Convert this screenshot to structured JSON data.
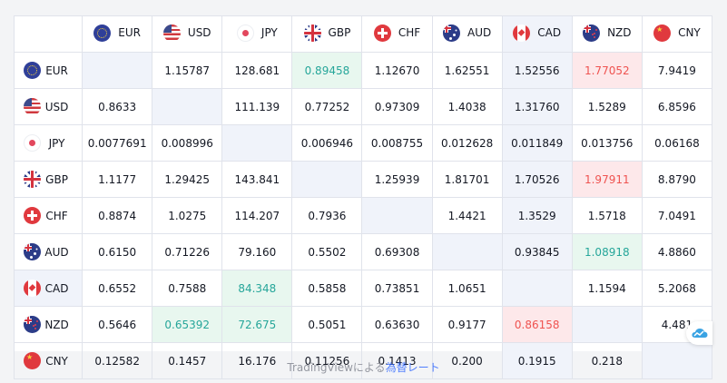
{
  "currencies": [
    "EUR",
    "USD",
    "JPY",
    "GBP",
    "CHF",
    "AUD",
    "CAD",
    "NZD",
    "CNY"
  ],
  "flag_icons": [
    "eu-flag-icon",
    "us-flag-icon",
    "jp-flag-icon",
    "gb-flag-icon",
    "ch-flag-icon",
    "au-flag-icon",
    "ca-flag-icon",
    "nz-flag-icon",
    "cn-flag-icon"
  ],
  "highlighted_column": "CAD",
  "rows": [
    {
      "currency": "EUR",
      "cells": [
        {
          "v": "",
          "s": "diag"
        },
        {
          "v": "1.15787",
          "s": ""
        },
        {
          "v": "128.681",
          "s": ""
        },
        {
          "v": "0.89458",
          "s": "up"
        },
        {
          "v": "1.12670",
          "s": ""
        },
        {
          "v": "1.62551",
          "s": ""
        },
        {
          "v": "1.52556",
          "s": ""
        },
        {
          "v": "1.77052",
          "s": "down"
        },
        {
          "v": "7.9419",
          "s": ""
        }
      ]
    },
    {
      "currency": "USD",
      "cells": [
        {
          "v": "0.8633",
          "s": ""
        },
        {
          "v": "",
          "s": "diag"
        },
        {
          "v": "111.139",
          "s": ""
        },
        {
          "v": "0.77252",
          "s": ""
        },
        {
          "v": "0.97309",
          "s": ""
        },
        {
          "v": "1.4038",
          "s": ""
        },
        {
          "v": "1.31760",
          "s": ""
        },
        {
          "v": "1.5289",
          "s": ""
        },
        {
          "v": "6.8596",
          "s": ""
        }
      ]
    },
    {
      "currency": "JPY",
      "cells": [
        {
          "v": "0.0077691",
          "s": ""
        },
        {
          "v": "0.008996",
          "s": ""
        },
        {
          "v": "",
          "s": "diag"
        },
        {
          "v": "0.006946",
          "s": ""
        },
        {
          "v": "0.008755",
          "s": ""
        },
        {
          "v": "0.012628",
          "s": ""
        },
        {
          "v": "0.011849",
          "s": ""
        },
        {
          "v": "0.013756",
          "s": ""
        },
        {
          "v": "0.06168",
          "s": ""
        }
      ]
    },
    {
      "currency": "GBP",
      "cells": [
        {
          "v": "1.1177",
          "s": ""
        },
        {
          "v": "1.29425",
          "s": ""
        },
        {
          "v": "143.841",
          "s": ""
        },
        {
          "v": "",
          "s": "diag"
        },
        {
          "v": "1.25939",
          "s": ""
        },
        {
          "v": "1.81701",
          "s": ""
        },
        {
          "v": "1.70526",
          "s": ""
        },
        {
          "v": "1.97911",
          "s": "down"
        },
        {
          "v": "8.8790",
          "s": ""
        }
      ]
    },
    {
      "currency": "CHF",
      "cells": [
        {
          "v": "0.8874",
          "s": ""
        },
        {
          "v": "1.0275",
          "s": ""
        },
        {
          "v": "114.207",
          "s": ""
        },
        {
          "v": "0.7936",
          "s": ""
        },
        {
          "v": "",
          "s": "diag"
        },
        {
          "v": "1.4421",
          "s": ""
        },
        {
          "v": "1.3529",
          "s": ""
        },
        {
          "v": "1.5718",
          "s": ""
        },
        {
          "v": "7.0491",
          "s": ""
        }
      ]
    },
    {
      "currency": "AUD",
      "cells": [
        {
          "v": "0.6150",
          "s": ""
        },
        {
          "v": "0.71226",
          "s": ""
        },
        {
          "v": "79.160",
          "s": ""
        },
        {
          "v": "0.5502",
          "s": ""
        },
        {
          "v": "0.69308",
          "s": ""
        },
        {
          "v": "",
          "s": "diag"
        },
        {
          "v": "0.93845",
          "s": ""
        },
        {
          "v": "1.08918",
          "s": "up"
        },
        {
          "v": "4.8860",
          "s": ""
        }
      ]
    },
    {
      "currency": "CAD",
      "cells": [
        {
          "v": "0.6552",
          "s": ""
        },
        {
          "v": "0.7588",
          "s": ""
        },
        {
          "v": "84.348",
          "s": "up"
        },
        {
          "v": "0.5858",
          "s": ""
        },
        {
          "v": "0.73851",
          "s": ""
        },
        {
          "v": "1.0651",
          "s": ""
        },
        {
          "v": "",
          "s": "diag"
        },
        {
          "v": "1.1594",
          "s": ""
        },
        {
          "v": "5.2068",
          "s": ""
        }
      ]
    },
    {
      "currency": "NZD",
      "cells": [
        {
          "v": "0.5646",
          "s": ""
        },
        {
          "v": "0.65392",
          "s": "up"
        },
        {
          "v": "72.675",
          "s": "up"
        },
        {
          "v": "0.5051",
          "s": ""
        },
        {
          "v": "0.63630",
          "s": ""
        },
        {
          "v": "0.9177",
          "s": ""
        },
        {
          "v": "0.86158",
          "s": "down"
        },
        {
          "v": "",
          "s": "diag"
        },
        {
          "v": "4.481",
          "s": ""
        }
      ]
    },
    {
      "currency": "CNY",
      "cells": [
        {
          "v": "0.12582",
          "s": ""
        },
        {
          "v": "0.1457",
          "s": ""
        },
        {
          "v": "16.176",
          "s": ""
        },
        {
          "v": "0.11256",
          "s": ""
        },
        {
          "v": "0.1413",
          "s": ""
        },
        {
          "v": "0.200",
          "s": ""
        },
        {
          "v": "0.1915",
          "s": ""
        },
        {
          "v": "0.218",
          "s": ""
        },
        {
          "v": "",
          "s": "diag"
        }
      ]
    }
  ],
  "footer": {
    "prefix": "TradingViewによる",
    "link_text": "為替レート"
  },
  "colors": {
    "up_bg": "#e8f7ef",
    "up_text": "#26a69a",
    "down_bg": "#fde8ea",
    "down_text": "#ef5350",
    "highlight_bg": "#f0f3fa",
    "link": "#2962ff"
  },
  "brand_badge_icon": "tradingview-cloud-icon"
}
